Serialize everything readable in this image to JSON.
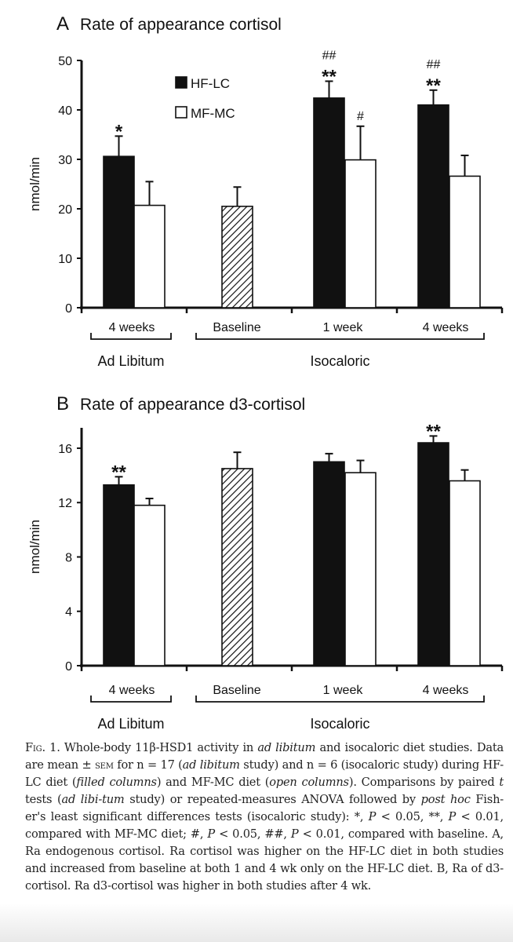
{
  "chart_data": [
    {
      "type": "bar",
      "panel_letter": "A",
      "title": "Rate of appearance cortisol",
      "ylabel": "nmol/min",
      "ylim": [
        0,
        50
      ],
      "yticks": [
        0,
        10,
        20,
        30,
        40,
        50
      ],
      "categories": [
        "4 weeks",
        "Baseline",
        "1 week",
        "4 weeks"
      ],
      "groups": [
        {
          "label": "Ad Libitum",
          "categories": [
            0
          ]
        },
        {
          "label": "Isocaloric",
          "categories": [
            1,
            2,
            3
          ]
        }
      ],
      "legend": {
        "placement": "top-left",
        "entries": [
          "HF-LC",
          "MF-MC"
        ]
      },
      "grid": false,
      "series": [
        {
          "name": "HF-LC",
          "fill": "#111111",
          "values": [
            30.6,
            null,
            42.4,
            41.0
          ],
          "errors": [
            4.1,
            null,
            3.4,
            3.0
          ],
          "annotations": [
            "*",
            null,
            "**\n##",
            "**\n##"
          ]
        },
        {
          "name": "MF-MC",
          "fill": "#ffffff",
          "values": [
            20.7,
            null,
            29.9,
            26.6
          ],
          "errors": [
            4.8,
            null,
            6.8,
            4.2
          ],
          "annotations": [
            null,
            null,
            "#",
            null
          ]
        },
        {
          "fill": "hatched",
          "values": [
            null,
            20.5,
            null,
            null
          ],
          "errors": [
            null,
            3.9,
            null,
            null
          ],
          "annotations": [
            null,
            null,
            null,
            null
          ]
        }
      ]
    },
    {
      "type": "bar",
      "panel_letter": "B",
      "title": "Rate of appearance d3-cortisol",
      "ylabel": "nmol/min",
      "ylim": [
        0,
        17.5
      ],
      "yticks": [
        0,
        4,
        8,
        12,
        16
      ],
      "categories": [
        "4 weeks",
        "Baseline",
        "1 week",
        "4 weeks"
      ],
      "groups": [
        {
          "label": "Ad Libitum",
          "categories": [
            0
          ]
        },
        {
          "label": "Isocaloric",
          "categories": [
            1,
            2,
            3
          ]
        }
      ],
      "grid": false,
      "series": [
        {
          "name": "HF-LC",
          "fill": "#111111",
          "values": [
            13.3,
            null,
            15.0,
            16.4
          ],
          "errors": [
            0.6,
            null,
            0.6,
            0.5
          ],
          "annotations": [
            "**",
            null,
            null,
            "**"
          ]
        },
        {
          "name": "MF-MC",
          "fill": "#ffffff",
          "values": [
            11.8,
            null,
            14.2,
            13.6
          ],
          "errors": [
            0.5,
            null,
            0.9,
            0.8
          ],
          "annotations": [
            null,
            null,
            null,
            null
          ]
        },
        {
          "fill": "hatched",
          "values": [
            null,
            14.5,
            null,
            null
          ],
          "errors": [
            null,
            1.2,
            null,
            null
          ],
          "annotations": [
            null,
            null,
            null,
            null
          ]
        }
      ]
    }
  ],
  "caption": [
    {
      "t": "Fig",
      "sc": true
    },
    {
      "t": ". 1. Whole-body 11β-HSD1 activity in "
    },
    {
      "t": "ad libitum",
      "i": true
    },
    {
      "t": " and isocaloric diet studies. Data are mean ± "
    },
    {
      "t": "sem",
      "sc": true
    },
    {
      "t": " for n = 17 ("
    },
    {
      "t": "ad libitum",
      "i": true
    },
    {
      "t": " study) and n = 6 (isocaloric study) during HF-LC diet ("
    },
    {
      "t": "filled columns",
      "i": true
    },
    {
      "t": ") and MF-MC diet ("
    },
    {
      "t": "open columns",
      "i": true
    },
    {
      "t": "). Comparisons by paired "
    },
    {
      "t": "t",
      "i": true
    },
    {
      "t": " tests ("
    },
    {
      "t": "ad libi-tum",
      "i": true
    },
    {
      "t": " study) or repeated-measures ANOVA followed by "
    },
    {
      "t": "post hoc",
      "i": true
    },
    {
      "t": " Fish-er's least significant differences tests (isocaloric study): *, "
    },
    {
      "t": "P",
      "i": true
    },
    {
      "t": " < 0.05, **, "
    },
    {
      "t": "P",
      "i": true
    },
    {
      "t": " < 0.01, compared with MF-MC diet; #, "
    },
    {
      "t": "P",
      "i": true
    },
    {
      "t": " < 0.05, ##, "
    },
    {
      "t": "P",
      "i": true
    },
    {
      "t": " < 0.01, compared with baseline. A, Ra endogenous cortisol. Ra cortisol was higher on the HF-LC diet in both studies and increased from baseline at both 1 and 4 wk only on the HF-LC diet. B, Ra of d3-cortisol. Ra d3-cortisol was higher in both studies after 4 wk."
    }
  ]
}
